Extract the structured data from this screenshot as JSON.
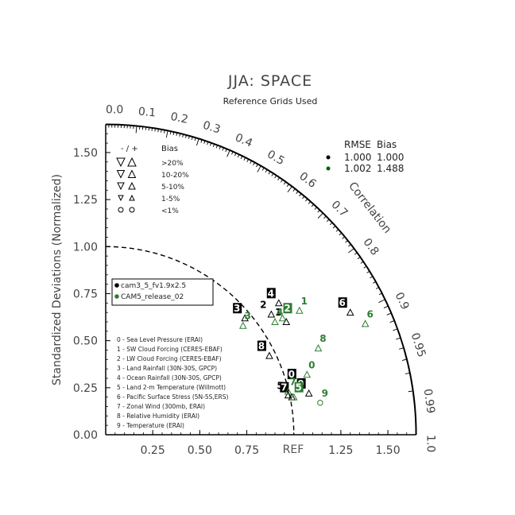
{
  "chart_data": {
    "type": "scatter",
    "subtype": "taylor-diagram",
    "title": "JJA: SPACE",
    "subtitle": "Reference Grids Used",
    "ylabel": "Standardized Deviations (Normalized)",
    "correlation_label": "Correlation",
    "ref_label": "REF",
    "std_ticks_y": [
      "0.00",
      "0.25",
      "0.50",
      "0.75",
      "1.00",
      "1.25",
      "1.50"
    ],
    "std_ticks_x": [
      "0.25",
      "0.50",
      "0.75",
      "1.25",
      "1.50"
    ],
    "std_range": [
      0,
      1.65
    ],
    "correlation_ticks": [
      {
        "value": 0.0,
        "label": "0.0"
      },
      {
        "value": 0.1,
        "label": "0.1"
      },
      {
        "value": 0.2,
        "label": "0.2"
      },
      {
        "value": 0.3,
        "label": "0.3"
      },
      {
        "value": 0.4,
        "label": "0.4"
      },
      {
        "value": 0.5,
        "label": "0.5"
      },
      {
        "value": 0.6,
        "label": "0.6"
      },
      {
        "value": 0.7,
        "label": "0.7"
      },
      {
        "value": 0.8,
        "label": "0.8"
      },
      {
        "value": 0.9,
        "label": "0.9"
      },
      {
        "value": 0.95,
        "label": "0.95"
      },
      {
        "value": 0.99,
        "label": "0.99"
      },
      {
        "value": 1.0,
        "label": "1.0"
      }
    ],
    "bias_legend": {
      "header": [
        "- / +",
        "Bias"
      ],
      "rows": [
        ">20%",
        "10-20%",
        "5-10%",
        "1-5%",
        "<1%"
      ]
    },
    "rmse_table": {
      "header": [
        "RMSE",
        "Bias"
      ],
      "rows": [
        {
          "rmse": "1.000",
          "bias": "1.000",
          "color": "#000000"
        },
        {
          "rmse": "1.002",
          "bias": "1.488",
          "color": "#006400"
        }
      ]
    },
    "series": [
      {
        "name": "cam3_5_fv1.9x2.5",
        "color": "#000000",
        "points": [
          {
            "id": "0",
            "x": 1.03,
            "y": 0.27,
            "size": "small",
            "dir": "up"
          },
          {
            "id": "1",
            "x": 0.96,
            "y": 0.6,
            "size": "small",
            "dir": "up"
          },
          {
            "id": "2",
            "x": 0.88,
            "y": 0.64,
            "size": "small",
            "dir": "up"
          },
          {
            "id": "3",
            "x": 0.74,
            "y": 0.62,
            "size": "small",
            "dir": "up"
          },
          {
            "id": "4",
            "x": 0.92,
            "y": 0.7,
            "size": "small",
            "dir": "up"
          },
          {
            "id": "5",
            "x": 0.97,
            "y": 0.21,
            "size": "small",
            "dir": "up"
          },
          {
            "id": "6",
            "x": 1.3,
            "y": 0.65,
            "size": "small",
            "dir": "up"
          },
          {
            "id": "7",
            "x": 0.99,
            "y": 0.2,
            "size": "small",
            "dir": "up"
          },
          {
            "id": "8",
            "x": 0.87,
            "y": 0.42,
            "size": "small",
            "dir": "up"
          },
          {
            "id": "9",
            "x": 1.08,
            "y": 0.22,
            "size": "small",
            "dir": "up"
          }
        ]
      },
      {
        "name": "CAM5_release_02",
        "color": "#2e7d32",
        "points": [
          {
            "id": "0",
            "x": 1.07,
            "y": 0.32,
            "size": "small",
            "dir": "up"
          },
          {
            "id": "1",
            "x": 1.03,
            "y": 0.66,
            "size": "small",
            "dir": "up"
          },
          {
            "id": "2",
            "x": 0.94,
            "y": 0.62,
            "size": "small",
            "dir": "up"
          },
          {
            "id": "3",
            "x": 0.73,
            "y": 0.58,
            "size": "small",
            "dir": "up"
          },
          {
            "id": "4",
            "x": 0.9,
            "y": 0.6,
            "size": "small",
            "dir": "up"
          },
          {
            "id": "5",
            "x": 1.0,
            "y": 0.2,
            "size": "small",
            "dir": "up"
          },
          {
            "id": "6",
            "x": 1.38,
            "y": 0.59,
            "size": "small",
            "dir": "up"
          },
          {
            "id": "7",
            "x": 0.97,
            "y": 0.23,
            "size": "small",
            "dir": "up"
          },
          {
            "id": "8",
            "x": 1.13,
            "y": 0.46,
            "size": "small",
            "dir": "up"
          },
          {
            "id": "9",
            "x": 1.14,
            "y": 0.17,
            "size": "small",
            "dir": "none"
          }
        ]
      }
    ],
    "variables": [
      "0 - Sea Level Pressure (ERAI)",
      "1 - SW Cloud Forcing (CERES-EBAF)",
      "2 - LW Cloud Forcing (CERES-EBAF)",
      "3 - Land Rainfall (30N-30S, GPCP)",
      "4 - Ocean Rainfall (30N-30S, GPCP)",
      "5 - Land 2-m Temperature (Willmott)",
      "6 - Pacific Surface Stress (5N-5S,ERS)",
      "7 - Zonal Wind (300mb, ERAI)",
      "8 - Relative Humidity (ERAI)",
      "9 - Temperature (ERAI)"
    ]
  }
}
